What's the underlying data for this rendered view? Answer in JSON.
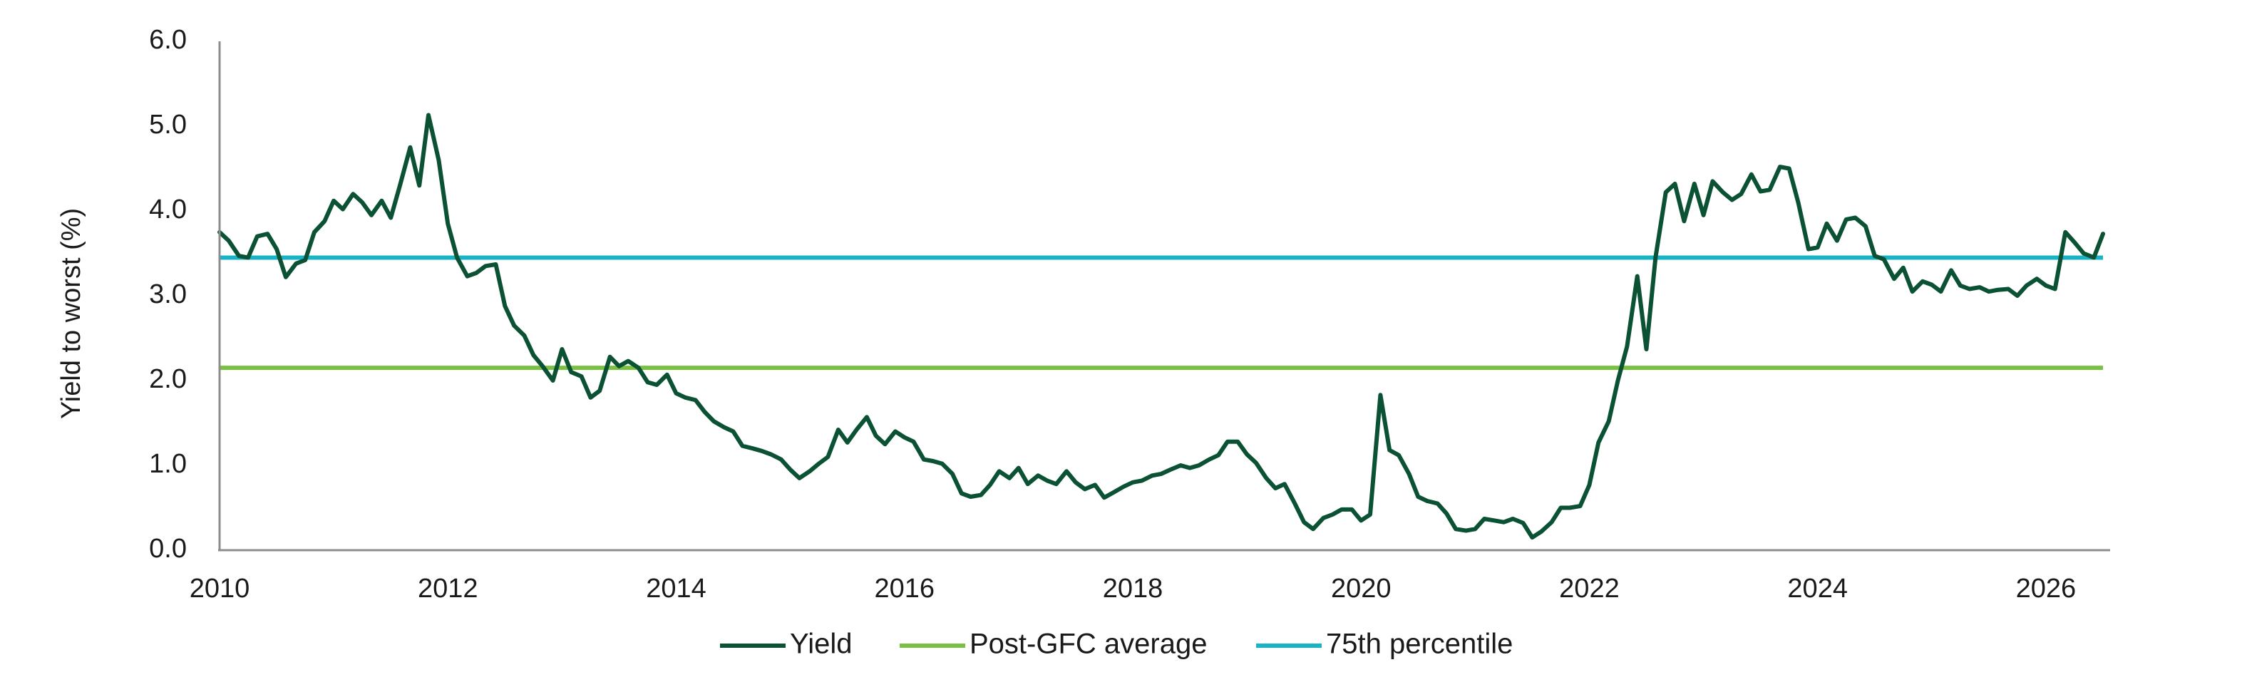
{
  "chart_data": {
    "type": "line",
    "ylabel": "Yield to worst (%)",
    "xlabel": "",
    "ylim": [
      0,
      6
    ],
    "yticks": [
      "0.0",
      "1.0",
      "2.0",
      "3.0",
      "4.0",
      "5.0",
      "6.0"
    ],
    "xlim": [
      2010.0,
      2026.5
    ],
    "xticks": [
      "2010",
      "2012",
      "2014",
      "2016",
      "2018",
      "2020",
      "2022",
      "2024",
      "2026"
    ],
    "grid": false,
    "legend_position": "bottom",
    "series": [
      {
        "name": "Yield",
        "color": "#0b5234",
        "x": [
          2010.0,
          2010.08,
          2010.17,
          2010.25,
          2010.33,
          2010.42,
          2010.5,
          2010.58,
          2010.67,
          2010.75,
          2010.83,
          2010.92,
          2011.0,
          2011.08,
          2011.17,
          2011.25,
          2011.33,
          2011.42,
          2011.5,
          2011.58,
          2011.67,
          2011.75,
          2011.83,
          2011.92,
          2012.0,
          2012.08,
          2012.17,
          2012.25,
          2012.33,
          2012.42,
          2012.5,
          2012.58,
          2012.67,
          2012.75,
          2012.83,
          2012.92,
          2013.0,
          2013.08,
          2013.17,
          2013.25,
          2013.33,
          2013.42,
          2013.5,
          2013.58,
          2013.67,
          2013.75,
          2013.83,
          2013.92,
          2014.0,
          2014.08,
          2014.17,
          2014.25,
          2014.33,
          2014.42,
          2014.5,
          2014.58,
          2014.67,
          2014.75,
          2014.83,
          2014.92,
          2015.0,
          2015.08,
          2015.17,
          2015.25,
          2015.33,
          2015.42,
          2015.5,
          2015.58,
          2015.67,
          2015.75,
          2015.83,
          2015.92,
          2016.0,
          2016.08,
          2016.17,
          2016.25,
          2016.33,
          2016.42,
          2016.5,
          2016.58,
          2016.67,
          2016.75,
          2016.83,
          2016.92,
          2017.0,
          2017.08,
          2017.17,
          2017.25,
          2017.33,
          2017.42,
          2017.5,
          2017.58,
          2017.67,
          2017.75,
          2017.83,
          2017.92,
          2018.0,
          2018.08,
          2018.17,
          2018.25,
          2018.33,
          2018.42,
          2018.5,
          2018.58,
          2018.67,
          2018.75,
          2018.83,
          2018.92,
          2019.0,
          2019.08,
          2019.17,
          2019.25,
          2019.33,
          2019.42,
          2019.5,
          2019.58,
          2019.67,
          2019.75,
          2019.83,
          2019.92,
          2020.0,
          2020.08,
          2020.17,
          2020.25,
          2020.33,
          2020.42,
          2020.5,
          2020.58,
          2020.67,
          2020.75,
          2020.83,
          2020.92,
          2021.0,
          2021.08,
          2021.17,
          2021.25,
          2021.33,
          2021.42,
          2021.5,
          2021.58,
          2021.67,
          2021.75,
          2021.83,
          2021.92,
          2022.0,
          2022.08,
          2022.17,
          2022.25,
          2022.33,
          2022.42,
          2022.5,
          2022.58,
          2022.67,
          2022.75,
          2022.83,
          2022.92,
          2023.0,
          2023.08,
          2023.17,
          2023.25,
          2023.33,
          2023.42,
          2023.5,
          2023.58,
          2023.67,
          2023.75,
          2023.83,
          2023.92,
          2024.0,
          2024.08,
          2024.17,
          2024.25,
          2024.33,
          2024.42,
          2024.5,
          2024.58,
          2024.67,
          2024.75,
          2024.83,
          2024.92,
          2025.0,
          2025.08,
          2025.17,
          2025.25,
          2025.33,
          2025.42,
          2025.5,
          2025.58,
          2025.67,
          2025.75,
          2025.83,
          2025.92,
          2026.0,
          2026.08,
          2026.17,
          2026.25,
          2026.33,
          2026.42,
          2026.5
        ],
        "y": [
          3.75,
          3.65,
          3.47,
          3.45,
          3.7,
          3.73,
          3.55,
          3.22,
          3.38,
          3.42,
          3.75,
          3.88,
          4.12,
          4.02,
          4.2,
          4.1,
          3.95,
          4.12,
          3.92,
          4.3,
          4.75,
          4.3,
          5.13,
          4.6,
          3.85,
          3.45,
          3.23,
          3.27,
          3.35,
          3.37,
          2.88,
          2.65,
          2.53,
          2.3,
          2.17,
          2.0,
          2.37,
          2.1,
          2.05,
          1.8,
          1.88,
          2.28,
          2.17,
          2.23,
          2.15,
          1.98,
          1.95,
          2.07,
          1.85,
          1.8,
          1.77,
          1.63,
          1.52,
          1.45,
          1.4,
          1.23,
          1.2,
          1.17,
          1.13,
          1.07,
          0.95,
          0.85,
          0.93,
          1.02,
          1.1,
          1.42,
          1.27,
          1.42,
          1.57,
          1.35,
          1.25,
          1.4,
          1.33,
          1.28,
          1.07,
          1.05,
          1.02,
          0.9,
          0.67,
          0.63,
          0.65,
          0.77,
          0.93,
          0.85,
          0.97,
          0.78,
          0.88,
          0.82,
          0.78,
          0.93,
          0.8,
          0.72,
          0.77,
          0.62,
          0.68,
          0.75,
          0.8,
          0.82,
          0.88,
          0.9,
          0.95,
          1.0,
          0.97,
          1.0,
          1.07,
          1.12,
          1.28,
          1.28,
          1.13,
          1.03,
          0.85,
          0.73,
          0.78,
          0.55,
          0.33,
          0.25,
          0.38,
          0.42,
          0.48,
          0.48,
          0.35,
          0.42,
          1.83,
          1.18,
          1.12,
          0.9,
          0.63,
          0.58,
          0.55,
          0.43,
          0.25,
          0.23,
          0.25,
          0.37,
          0.35,
          0.33,
          0.37,
          0.32,
          0.15,
          0.22,
          0.33,
          0.5,
          0.5,
          0.52,
          0.77,
          1.27,
          1.52,
          2.0,
          2.4,
          3.23,
          2.37,
          3.45,
          4.22,
          4.32,
          3.88,
          4.32,
          3.95,
          4.35,
          4.22,
          4.13,
          4.2,
          4.43,
          4.23,
          4.25,
          4.52,
          4.5,
          4.1,
          3.55,
          3.57,
          3.85,
          3.65,
          3.9,
          3.92,
          3.82,
          3.47,
          3.43,
          3.2,
          3.33,
          3.05,
          3.17,
          3.13,
          3.05,
          3.3,
          3.12,
          3.08,
          3.1,
          3.05,
          3.07,
          3.08,
          3.0,
          3.12,
          3.2,
          3.12,
          3.08,
          3.75,
          3.63,
          3.5,
          3.45,
          3.73
        ]
      },
      {
        "name": "Post-GFC average",
        "color": "#7ac043",
        "value": 2.15
      },
      {
        "name": "75th percentile",
        "color": "#18b4c6",
        "value": 3.45
      }
    ]
  }
}
